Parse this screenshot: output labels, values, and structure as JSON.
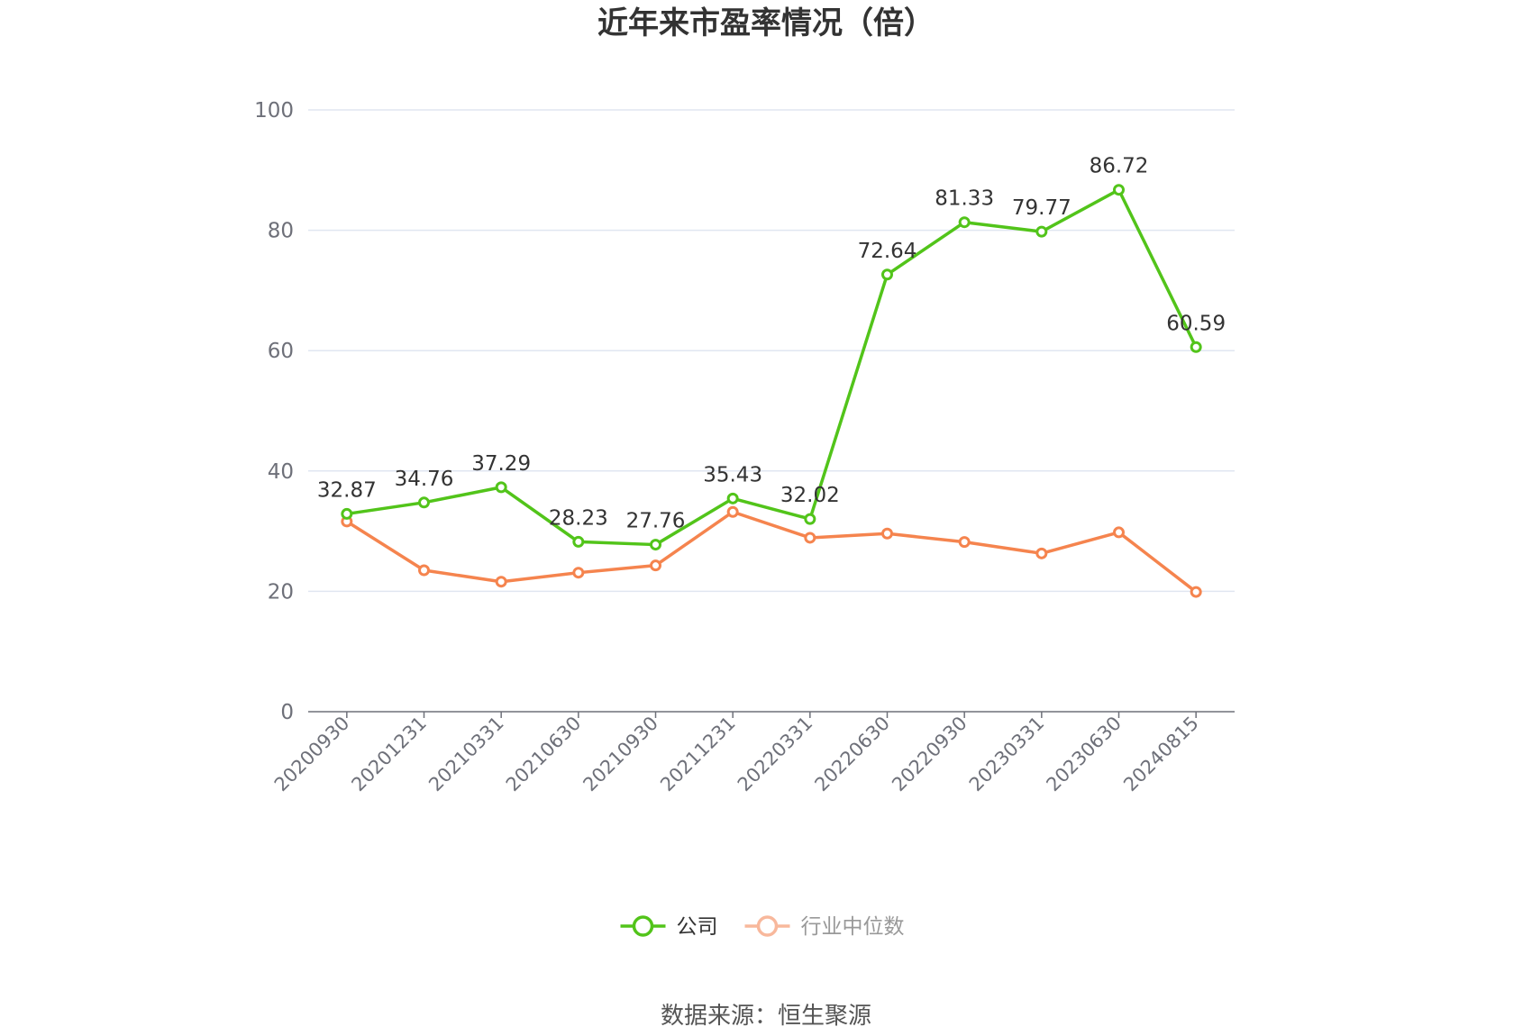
{
  "title": "近年来市盈率情况（倍）",
  "source": "数据来源：恒生聚源",
  "chart_data": {
    "type": "line",
    "title": "近年来市盈率情况（倍）",
    "xlabel": "",
    "ylabel": "",
    "ylim": [
      0,
      100
    ],
    "yticks": [
      0,
      20,
      40,
      60,
      80,
      100
    ],
    "grid": true,
    "legend_position": "bottom",
    "categories": [
      "20200930",
      "20201231",
      "20210331",
      "20210630",
      "20210930",
      "20211231",
      "20220331",
      "20220630",
      "20220930",
      "20230331",
      "20230630",
      "20240815"
    ],
    "series": [
      {
        "name": "公司",
        "color": "#52c41a",
        "show_labels": true,
        "values": [
          32.87,
          34.76,
          37.29,
          28.23,
          27.76,
          35.43,
          32.02,
          72.64,
          81.33,
          79.77,
          86.72,
          60.59
        ],
        "labels": [
          "32.87",
          "34.76",
          "37.29",
          "28.23",
          "27.76",
          "35.43",
          "32.02",
          "72.64",
          "81.33",
          "79.77",
          "86.72",
          "60.59"
        ]
      },
      {
        "name": "行业中位数",
        "color": "#f5844e",
        "legend_color": "#f8b89c",
        "show_labels": false,
        "values": [
          31.6,
          23.5,
          21.6,
          23.1,
          24.3,
          33.2,
          28.9,
          29.6,
          28.2,
          26.3,
          29.8,
          19.9
        ]
      }
    ]
  }
}
